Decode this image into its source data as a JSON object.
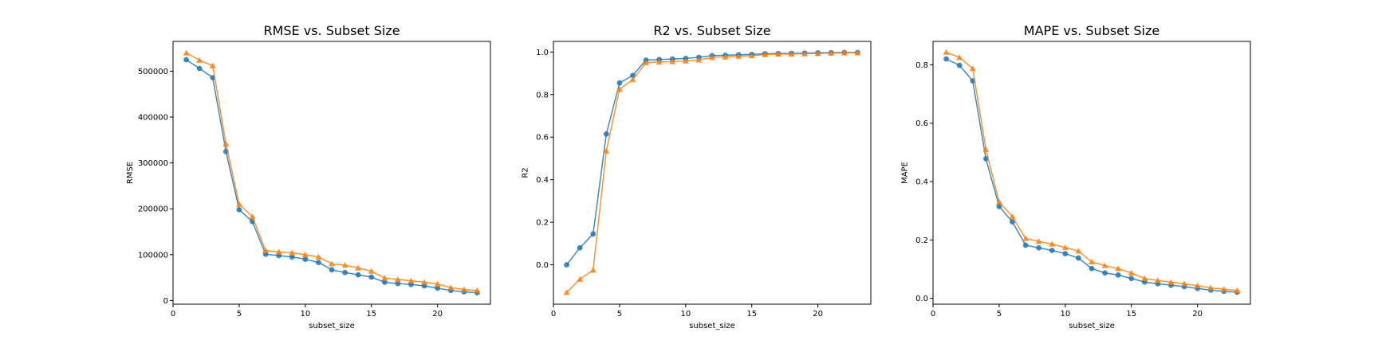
{
  "colors": {
    "series_1": "#1f77b4",
    "series_2": "#ff7f0e",
    "axes": "#000000",
    "background": "#ffffff"
  },
  "chart_data": [
    {
      "type": "line",
      "title": "RMSE vs. Subset Size",
      "xlabel": "subset_size",
      "ylabel": "RMSE",
      "xlim": [
        0,
        24
      ],
      "ylim": [
        -8000,
        565000
      ],
      "xticks": [
        0,
        5,
        10,
        15,
        20
      ],
      "xtick_labels": [
        "0",
        "5",
        "10",
        "15",
        "20"
      ],
      "yticks": [
        0,
        100000,
        200000,
        300000,
        400000,
        500000
      ],
      "ytick_labels": [
        "0",
        "100000",
        "200000",
        "300000",
        "400000",
        "500000"
      ],
      "grid": false,
      "legend": "none",
      "x": [
        1,
        2,
        3,
        4,
        5,
        6,
        7,
        8,
        9,
        10,
        11,
        12,
        13,
        14,
        15,
        16,
        17,
        18,
        19,
        20,
        21,
        22,
        23
      ],
      "series": [
        {
          "marker": "circle",
          "values": [
            525000,
            506000,
            486000,
            325000,
            198000,
            172000,
            101000,
            98000,
            95000,
            90000,
            83000,
            67000,
            61000,
            56000,
            51000,
            40000,
            37000,
            35000,
            32000,
            27000,
            22000,
            19000,
            17000
          ]
        },
        {
          "marker": "triangle",
          "values": [
            540000,
            524000,
            512000,
            342000,
            210000,
            183000,
            109000,
            106000,
            104000,
            100000,
            95000,
            80000,
            77000,
            71000,
            64000,
            49000,
            46000,
            43000,
            40000,
            36000,
            28000,
            24000,
            22000
          ]
        }
      ]
    },
    {
      "type": "line",
      "title": "R2 vs. Subset Size",
      "xlabel": "subset_size",
      "ylabel": "R2",
      "xlim": [
        0,
        24
      ],
      "ylim": [
        -0.185,
        1.05
      ],
      "xticks": [
        0,
        5,
        10,
        15,
        20
      ],
      "xtick_labels": [
        "0",
        "5",
        "10",
        "15",
        "20"
      ],
      "yticks": [
        0.0,
        0.2,
        0.4,
        0.6,
        0.8,
        1.0
      ],
      "ytick_labels": [
        "0.0",
        "0.2",
        "0.4",
        "0.6",
        "0.8",
        "1.0"
      ],
      "grid": false,
      "legend": "none",
      "x": [
        1,
        2,
        3,
        4,
        5,
        6,
        7,
        8,
        9,
        10,
        11,
        12,
        13,
        14,
        15,
        16,
        17,
        18,
        19,
        20,
        21,
        22,
        23
      ],
      "series": [
        {
          "marker": "circle",
          "values": [
            0.0,
            0.08,
            0.145,
            0.615,
            0.855,
            0.89,
            0.962,
            0.965,
            0.967,
            0.97,
            0.975,
            0.983,
            0.985,
            0.987,
            0.989,
            0.992,
            0.993,
            0.994,
            0.995,
            0.996,
            0.997,
            0.998,
            0.998
          ]
        },
        {
          "marker": "triangle",
          "values": [
            -0.13,
            -0.068,
            -0.025,
            0.535,
            0.825,
            0.87,
            0.95,
            0.953,
            0.955,
            0.958,
            0.963,
            0.974,
            0.977,
            0.98,
            0.983,
            0.988,
            0.99,
            0.991,
            0.992,
            0.993,
            0.995,
            0.996,
            0.996
          ]
        }
      ]
    },
    {
      "type": "line",
      "title": "MAPE vs. Subset Size",
      "xlabel": "subset_size",
      "ylabel": "MAPE",
      "xlim": [
        0,
        24
      ],
      "ylim": [
        -0.02,
        0.88
      ],
      "xticks": [
        0,
        5,
        10,
        15,
        20
      ],
      "xtick_labels": [
        "0",
        "5",
        "10",
        "15",
        "20"
      ],
      "yticks": [
        0.0,
        0.2,
        0.4,
        0.6,
        0.8
      ],
      "ytick_labels": [
        "0.0",
        "0.2",
        "0.4",
        "0.6",
        "0.8"
      ],
      "grid": false,
      "legend": "none",
      "x": [
        1,
        2,
        3,
        4,
        5,
        6,
        7,
        8,
        9,
        10,
        11,
        12,
        13,
        14,
        15,
        16,
        17,
        18,
        19,
        20,
        21,
        22,
        23
      ],
      "series": [
        {
          "marker": "circle",
          "values": [
            0.82,
            0.798,
            0.745,
            0.478,
            0.315,
            0.262,
            0.182,
            0.173,
            0.164,
            0.153,
            0.138,
            0.102,
            0.087,
            0.08,
            0.068,
            0.056,
            0.05,
            0.045,
            0.04,
            0.034,
            0.028,
            0.024,
            0.021
          ]
        },
        {
          "marker": "triangle",
          "values": [
            0.843,
            0.825,
            0.787,
            0.51,
            0.33,
            0.28,
            0.205,
            0.195,
            0.186,
            0.174,
            0.162,
            0.125,
            0.112,
            0.102,
            0.087,
            0.068,
            0.061,
            0.055,
            0.05,
            0.043,
            0.036,
            0.031,
            0.027
          ]
        }
      ]
    }
  ]
}
